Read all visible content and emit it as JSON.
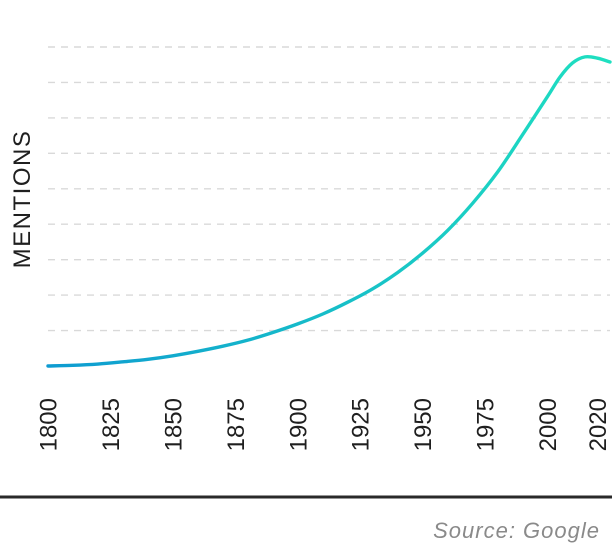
{
  "chart_data": {
    "type": "line",
    "title": "",
    "xlabel": "",
    "ylabel": "MENTIONS",
    "xlim": [
      1800,
      2025
    ],
    "ylim": [
      0,
      100
    ],
    "y_tick_labels_visible": false,
    "grid": "horizontal-dashed",
    "x_ticks": [
      1800,
      1825,
      1850,
      1875,
      1900,
      1925,
      1950,
      1975,
      2000,
      2020
    ],
    "x_tick_labels": [
      "1800",
      "1825",
      "1850",
      "1875",
      "1900",
      "1925",
      "1950",
      "1975",
      "2000",
      "2020"
    ],
    "series": [
      {
        "color_start": "#0e9bd1",
        "color_end": "#1fe0c0",
        "points": [
          [
            1800,
            0.0
          ],
          [
            1810,
            0.2
          ],
          [
            1820,
            0.6
          ],
          [
            1830,
            1.3
          ],
          [
            1840,
            2.1
          ],
          [
            1850,
            3.2
          ],
          [
            1860,
            4.6
          ],
          [
            1870,
            6.2
          ],
          [
            1880,
            8.1
          ],
          [
            1890,
            10.5
          ],
          [
            1900,
            13.2
          ],
          [
            1910,
            16.3
          ],
          [
            1920,
            20.0
          ],
          [
            1930,
            24.2
          ],
          [
            1940,
            29.3
          ],
          [
            1950,
            35.4
          ],
          [
            1960,
            42.5
          ],
          [
            1970,
            51.0
          ],
          [
            1980,
            60.8
          ],
          [
            1990,
            72.5
          ],
          [
            2000,
            84.5
          ],
          [
            2005,
            90.6
          ],
          [
            2010,
            95.0
          ],
          [
            2015,
            96.9
          ],
          [
            2020,
            96.5
          ],
          [
            2025,
            95.3
          ]
        ]
      }
    ]
  },
  "source": "Source: Google"
}
